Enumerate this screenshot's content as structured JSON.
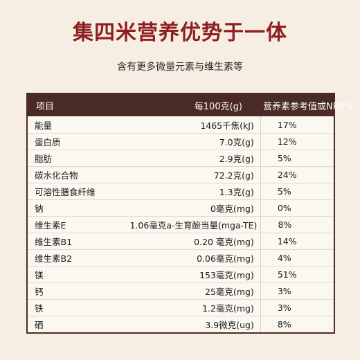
{
  "title": "集四米营养优势于一体",
  "subtitle": "含有更多微量元素与维生素等",
  "table": {
    "headers": [
      "项目",
      "每100克(g)",
      "营养素参考值或NRV%"
    ],
    "rows": [
      [
        "能量",
        "1465千焦(kJ)",
        "17%"
      ],
      [
        "蛋白质",
        "7.0克(g)",
        "12%"
      ],
      [
        "脂肪",
        "2.9克(g)",
        "5%"
      ],
      [
        "碳水化合物",
        "72.2克(g)",
        "24%"
      ],
      [
        "可溶性膳食纤维",
        "1.3克(g)",
        "5%"
      ],
      [
        "钠",
        "0毫克(mg)",
        "0%"
      ],
      [
        "维生素E",
        "1.06毫克a-生育酚当量(mga-TE)",
        "8%"
      ],
      [
        "维生素B1",
        "0.20 毫克(mg)",
        "14%"
      ],
      [
        "维生素B2",
        "0.06毫克(mg)",
        "4%"
      ],
      [
        "镁",
        "153毫克(mg)",
        "51%"
      ],
      [
        "钙",
        "25毫克(mg)",
        "3%"
      ],
      [
        "铁",
        "1.2毫克(mg)",
        "3%"
      ],
      [
        "硒",
        "3.9微克(ug)",
        "8%"
      ]
    ]
  },
  "colors": {
    "title": "#8e1f1f",
    "header_bg": "#4a2a24",
    "background": "#f6eee2"
  }
}
